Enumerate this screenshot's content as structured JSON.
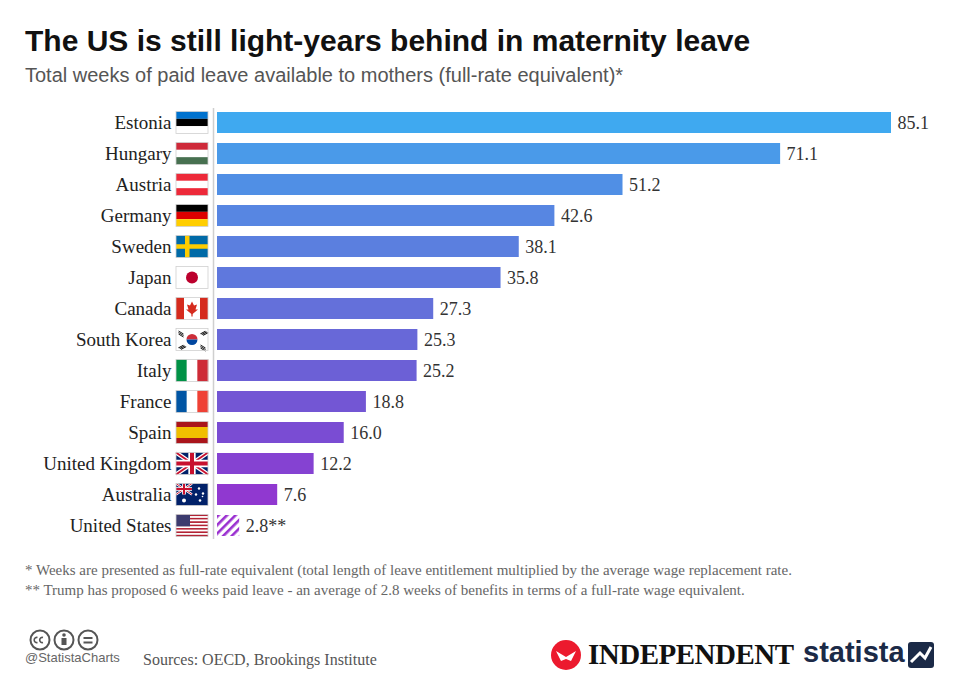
{
  "chart_data": {
    "type": "bar",
    "orientation": "horizontal",
    "title": "The US is still light-years behind in maternity leave",
    "subtitle": "Total weeks of paid leave available to mothers (full-rate equivalent)*",
    "categories": [
      "Estonia",
      "Hungary",
      "Austria",
      "Germany",
      "Sweden",
      "Japan",
      "Canada",
      "South Korea",
      "Italy",
      "France",
      "Spain",
      "United Kingdom",
      "Australia",
      "United States"
    ],
    "values": [
      85.1,
      71.1,
      51.2,
      42.6,
      38.1,
      35.8,
      27.3,
      25.3,
      25.2,
      18.8,
      16.0,
      12.2,
      7.6,
      2.8
    ],
    "value_labels": [
      "85.1",
      "71.1",
      "51.2",
      "42.6",
      "38.1",
      "35.8",
      "27.3",
      "25.3",
      "25.2",
      "18.8",
      "16.0",
      "12.2",
      "7.6",
      "2.8**"
    ],
    "colors": [
      "#3fa9f0",
      "#4a9ae9",
      "#508fe5",
      "#5786e2",
      "#5b7fdf",
      "#5f78dd",
      "#6470da",
      "#6868d8",
      "#6c60d6",
      "#7356d4",
      "#7a4cd3",
      "#8542d2",
      "#9038d0",
      "#9a2fd0"
    ],
    "xlim": [
      0,
      85.1
    ],
    "data_labels": true,
    "tick_labels": "y",
    "grid": false,
    "annotations": [
      "*   Weeks are presented as full-rate equivalent (total length of leave entitlement multiplied by the average wage replacement rate.",
      "** Trump has proposed 6 weeks paid leave - an average of 2.8 weeks of benefits in terms of a full-rate wage equivalent."
    ],
    "source": "Sources: OECD, Brookings Institute",
    "credits": [
      "@StatistaCharts",
      "INDEPENDENT",
      "statista"
    ]
  }
}
